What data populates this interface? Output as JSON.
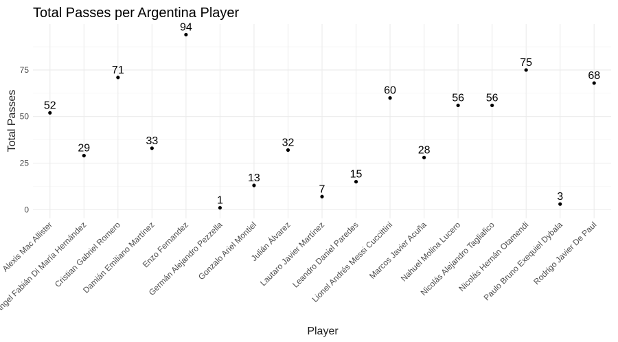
{
  "chart_data": {
    "type": "scatter",
    "title": "Total Passes per Argentina Player",
    "xlabel": "Player",
    "ylabel": "Total Passes",
    "categories": [
      "Alexis Mac Allister",
      "Ángel Fabián Di María Hernández",
      "Cristian Gabriel Romero",
      "Damián Emiliano Martínez",
      "Enzo Fernandez",
      "Germán Alejandro Pezzella",
      "Gonzalo Ariel Montiel",
      "Julián Álvarez",
      "Lautaro Javier Martínez",
      "Leandro Daniel Paredes",
      "Lionel Andrés Messi Cuccittini",
      "Marcos Javier Acuña",
      "Nahuel Molina Lucero",
      "Nicolás Alejandro Tagliafico",
      "Nicolás Hernán Otamendi",
      "Paulo Bruno Exequiel Dybala",
      "Rodrigo Javier De Paul"
    ],
    "values": [
      52,
      29,
      71,
      33,
      94,
      1,
      13,
      32,
      7,
      15,
      60,
      28,
      56,
      56,
      75,
      3,
      68
    ],
    "ylim": [
      -4.7,
      99.7
    ],
    "yticks": [
      0,
      25,
      50,
      75
    ],
    "grid": true,
    "legend": "none"
  }
}
